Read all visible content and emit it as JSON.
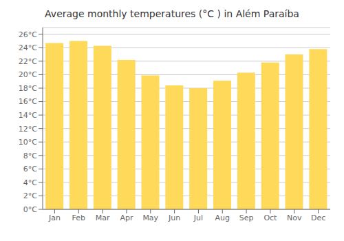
{
  "chart_data": {
    "type": "bar",
    "title": "Average monthly temperatures (°C ) in Além Paraíba",
    "categories": [
      "Jan",
      "Feb",
      "Mar",
      "Apr",
      "May",
      "Jun",
      "Jul",
      "Aug",
      "Sep",
      "Oct",
      "Nov",
      "Dec"
    ],
    "values": [
      24.7,
      25.0,
      24.3,
      22.2,
      19.9,
      18.4,
      18.0,
      19.1,
      20.3,
      21.8,
      23.0,
      23.8
    ],
    "color": "#FFD959",
    "ylim": [
      0,
      27
    ],
    "yticks": [
      {
        "value": 0,
        "label": "0°C"
      },
      {
        "value": 2,
        "label": "2°C"
      },
      {
        "value": 4,
        "label": "4°C"
      },
      {
        "value": 6,
        "label": "6°C"
      },
      {
        "value": 8,
        "label": "8°C"
      },
      {
        "value": 10,
        "label": "10°C"
      },
      {
        "value": 12,
        "label": "12°C"
      },
      {
        "value": 14,
        "label": "14°C"
      },
      {
        "value": 16,
        "label": "16°C"
      },
      {
        "value": 18,
        "label": "18°C"
      },
      {
        "value": 20,
        "label": "20°C"
      },
      {
        "value": 22,
        "label": "22°C"
      },
      {
        "value": 24,
        "label": "24°C"
      },
      {
        "value": 26,
        "label": "26°C"
      }
    ],
    "grid": true
  }
}
